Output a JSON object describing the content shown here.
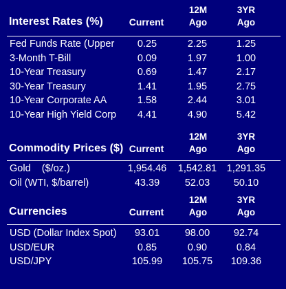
{
  "interest": {
    "title": "Interest Rates (%)",
    "col_current": "Current",
    "col_12m_line1": "12M",
    "col_12m_line2": "Ago",
    "col_3yr_line1": "3YR",
    "col_3yr_line2": "Ago",
    "rows": [
      {
        "label": "Fed Funds Rate (Upper",
        "current": "0.25",
        "m12": "2.25",
        "y3": "1.25"
      },
      {
        "label": "3-Month T-Bill",
        "current": "0.09",
        "m12": "1.97",
        "y3": "1.00"
      },
      {
        "label": "10-Year Treasury",
        "current": "0.69",
        "m12": "1.47",
        "y3": "2.17"
      },
      {
        "label": "30-Year Treasury",
        "current": "1.41",
        "m12": "1.95",
        "y3": "2.75"
      },
      {
        "label": "10-Year Corporate AA",
        "current": "1.58",
        "m12": "2.44",
        "y3": "3.01"
      },
      {
        "label": "10-Year High Yield Corp",
        "current": "4.41",
        "m12": "4.90",
        "y3": "5.42"
      }
    ]
  },
  "commodity": {
    "title": "Commodity Prices ($)",
    "col_current": "Current",
    "col_12m_line1": "12M",
    "col_12m_line2": "Ago",
    "col_3yr_line1": "3YR",
    "col_3yr_line2": "Ago",
    "rows": [
      {
        "label": "Gold    ($/oz.)",
        "current": "1,954.46",
        "m12": "1,542.81",
        "y3": "1,291.35"
      },
      {
        "label": "Oil (WTI, $/barrel)",
        "current": "43.39",
        "m12": "52.03",
        "y3": "50.10"
      }
    ]
  },
  "currencies": {
    "title": "Currencies",
    "col_current": "Current",
    "col_12m_line1": "12M",
    "col_12m_line2": "Ago",
    "col_3yr_line1": "3YR",
    "col_3yr_line2": "Ago",
    "rows": [
      {
        "label": "USD (Dollar Index Spot)",
        "current": "93.01",
        "m12": "98.00",
        "y3": "92.74"
      },
      {
        "label": "USD/EUR",
        "current": "0.85",
        "m12": "0.90",
        "y3": "0.84"
      },
      {
        "label": "USD/JPY",
        "current": "105.99",
        "m12": "105.75",
        "y3": "109.36"
      }
    ]
  }
}
